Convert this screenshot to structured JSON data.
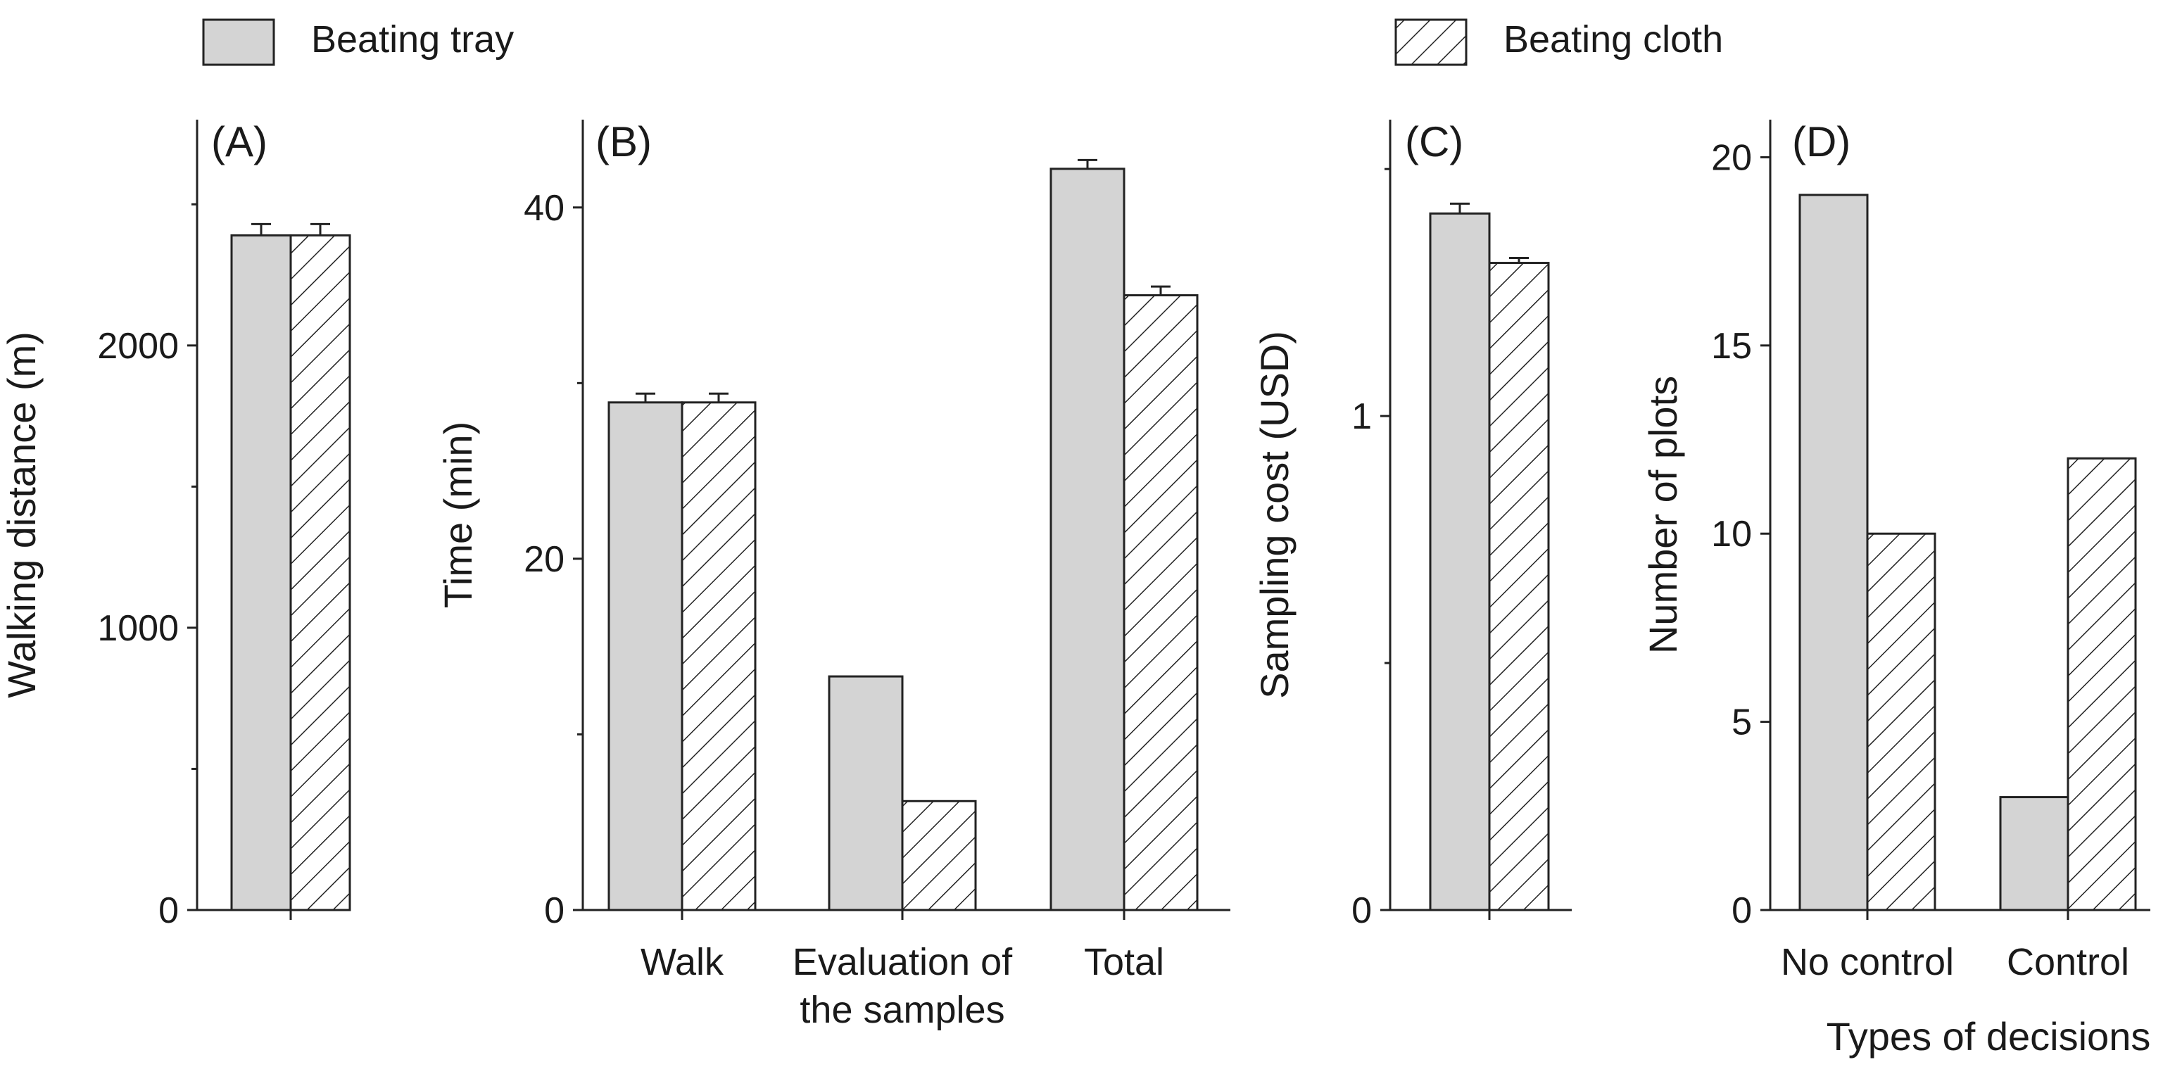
{
  "legend": {
    "items": [
      {
        "label": "Beating tray",
        "pattern": "solid",
        "fill": "#d4d4d4"
      },
      {
        "label": "Beating cloth",
        "pattern": "hatch",
        "fill": "#ffffff"
      }
    ]
  },
  "colors": {
    "solid": "#d4d4d4",
    "hatch_bg": "#ffffff",
    "stroke": "#222222"
  },
  "chart_data": [
    {
      "id": "A",
      "type": "bar",
      "panel_label": "(A)",
      "ylabel": "Walking distance (m)",
      "xlabel": "",
      "categories": [
        ""
      ],
      "series": [
        {
          "name": "Beating tray",
          "values": [
            2390
          ],
          "errors": [
            40
          ]
        },
        {
          "name": "Beating cloth",
          "values": [
            2390
          ],
          "errors": [
            40
          ]
        }
      ],
      "ylim": [
        0,
        2800
      ],
      "yticks": [
        0,
        1000,
        2000
      ],
      "ytick_labels": [
        "0",
        "1000",
        "2000"
      ],
      "minor_yticks": [
        500,
        1500,
        2500
      ]
    },
    {
      "id": "B",
      "type": "bar",
      "panel_label": "(B)",
      "ylabel": "Time (min)",
      "xlabel": "",
      "categories": [
        "Walk",
        "Evaluation of the samples",
        "Total"
      ],
      "category_lines": [
        [
          "Walk"
        ],
        [
          "Evaluation of",
          "the samples"
        ],
        [
          "Total"
        ]
      ],
      "series": [
        {
          "name": "Beating tray",
          "values": [
            28.9,
            13.3,
            42.2
          ],
          "errors": [
            0.5,
            0,
            0.5
          ]
        },
        {
          "name": "Beating cloth",
          "values": [
            28.9,
            6.2,
            35
          ],
          "errors": [
            0.5,
            0,
            0.5
          ]
        }
      ],
      "ylim": [
        0,
        45
      ],
      "yticks": [
        0,
        20,
        40
      ],
      "ytick_labels": [
        "0",
        "20",
        "40"
      ],
      "minor_yticks": [
        10,
        30
      ]
    },
    {
      "id": "C",
      "type": "bar",
      "panel_label": "(C)",
      "ylabel": "Sampling cost (USD)",
      "xlabel": "",
      "categories": [
        ""
      ],
      "series": [
        {
          "name": "Beating tray",
          "values": [
            1.41
          ],
          "errors": [
            0.02
          ]
        },
        {
          "name": "Beating cloth",
          "values": [
            1.31
          ],
          "errors": [
            0.01
          ]
        }
      ],
      "ylim": [
        0,
        1.6
      ],
      "yticks": [
        0,
        1
      ],
      "ytick_labels": [
        "0",
        "1"
      ],
      "minor_yticks": [
        0.5,
        1.5
      ]
    },
    {
      "id": "D",
      "type": "bar",
      "panel_label": "(D)",
      "ylabel": "Number of plots",
      "xlabel": "Types of decisions",
      "categories": [
        "No control",
        "Control"
      ],
      "category_lines": [
        [
          "No control"
        ],
        [
          "Control"
        ]
      ],
      "series": [
        {
          "name": "Beating tray",
          "values": [
            19,
            3
          ],
          "errors": [
            0,
            0
          ]
        },
        {
          "name": "Beating cloth",
          "values": [
            10,
            12
          ],
          "errors": [
            0,
            0
          ]
        }
      ],
      "ylim": [
        0,
        21
      ],
      "yticks": [
        0,
        5,
        10,
        15,
        20
      ],
      "ytick_labels": [
        "0",
        "5",
        "10",
        "15",
        "20"
      ],
      "minor_yticks": []
    }
  ]
}
